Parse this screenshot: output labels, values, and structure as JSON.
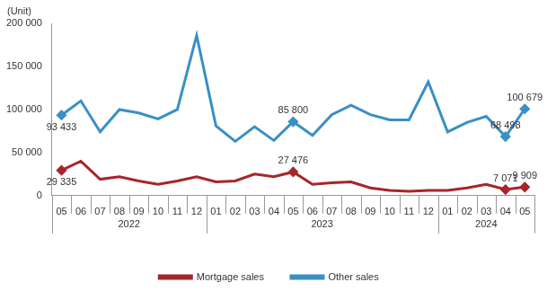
{
  "chart_data": {
    "type": "line",
    "y_label": "(Unit)",
    "categories": [
      "05",
      "06",
      "07",
      "08",
      "09",
      "10",
      "11",
      "12",
      "01",
      "02",
      "03",
      "04",
      "05",
      "06",
      "07",
      "08",
      "09",
      "10",
      "11",
      "12",
      "01",
      "02",
      "03",
      "04",
      "05"
    ],
    "x_groups": [
      {
        "label": "2022",
        "count": 8
      },
      {
        "label": "2023",
        "count": 12
      },
      {
        "label": "2024",
        "count": 5
      }
    ],
    "series": [
      {
        "name": "Mortgage sales",
        "color": "#a6262c",
        "marker": "diamond",
        "values": [
          29335,
          40000,
          19000,
          22000,
          17000,
          13000,
          17000,
          22000,
          16000,
          17000,
          25000,
          22000,
          27476,
          13000,
          15000,
          16000,
          9000,
          6000,
          5000,
          6000,
          6000,
          9000,
          13000,
          7071,
          9909
        ],
        "value_labels": [
          "29 335",
          null,
          null,
          null,
          null,
          null,
          null,
          null,
          null,
          null,
          null,
          null,
          "27 476",
          null,
          null,
          null,
          null,
          null,
          null,
          null,
          null,
          null,
          null,
          "7 071",
          "9 909"
        ]
      },
      {
        "name": "Other sales",
        "color": "#3a8fc6",
        "marker": "diamond",
        "values": [
          93433,
          110000,
          74000,
          100000,
          96000,
          89000,
          100000,
          186000,
          81000,
          63000,
          80000,
          64000,
          85800,
          70000,
          94000,
          105000,
          94000,
          88000,
          88000,
          132000,
          74000,
          85000,
          92000,
          68498,
          100679
        ],
        "value_labels": [
          "93 433",
          null,
          null,
          null,
          null,
          null,
          null,
          null,
          null,
          null,
          null,
          null,
          "85 800",
          null,
          null,
          null,
          null,
          null,
          null,
          null,
          null,
          null,
          null,
          "68 498",
          "100 679"
        ]
      }
    ],
    "ylim": [
      0,
      200000
    ],
    "yticks": [
      0,
      {
        "value": 50000,
        "label": "50 000"
      },
      {
        "value": 100000,
        "label": "100 000"
      },
      {
        "value": 150000,
        "label": "150 000"
      },
      {
        "value": 200000,
        "label": "200 000"
      }
    ],
    "grid": false,
    "legend": "bottom",
    "data_labels": true
  }
}
